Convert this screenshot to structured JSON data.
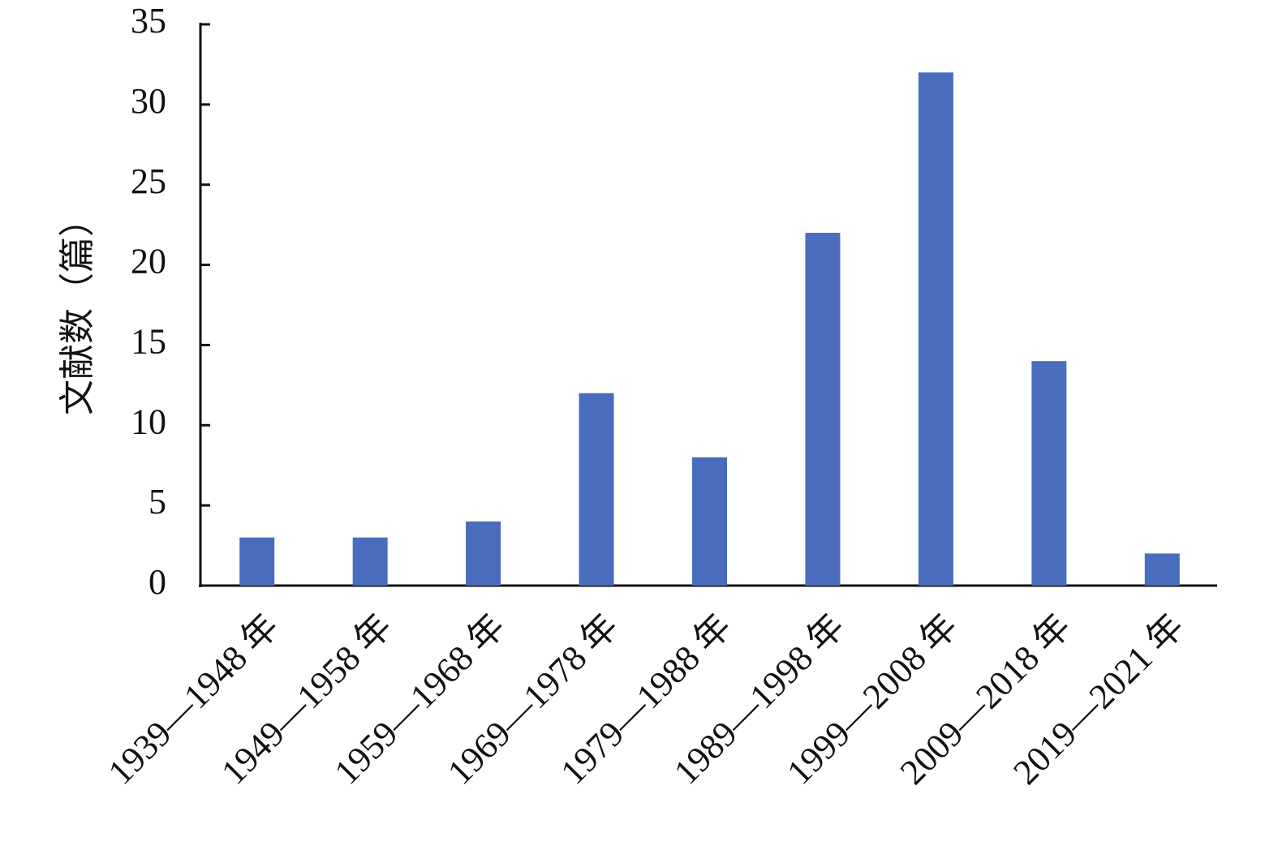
{
  "chart_data": {
    "type": "bar",
    "y_label": "文献数（篇）",
    "categories": [
      "1939—1948 年",
      "1949—1958 年",
      "1959—1968 年",
      "1969—1978 年",
      "1979—1988 年",
      "1989—1998 年",
      "1999—2008 年",
      "2009—2018 年",
      "2019—2021 年"
    ],
    "values": [
      3,
      3,
      4,
      12,
      8,
      22,
      32,
      14,
      2
    ],
    "color": "#4a6cbd",
    "ylim": [
      0,
      35
    ],
    "yticks": [
      0,
      5,
      10,
      15,
      20,
      25,
      30,
      35
    ],
    "grid": false
  }
}
